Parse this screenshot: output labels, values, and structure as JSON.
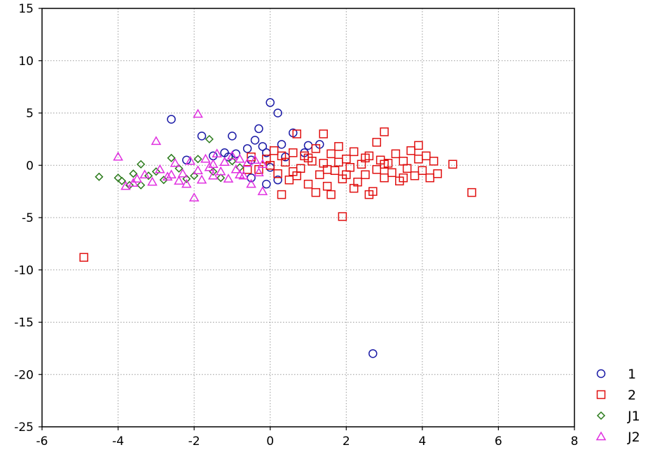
{
  "chart_data": {
    "type": "scatter",
    "title": "",
    "xlabel": "",
    "ylabel": "",
    "xlim": [
      -6,
      8
    ],
    "ylim": [
      -25,
      15
    ],
    "xticks": [
      -6,
      -4,
      -2,
      0,
      2,
      4,
      6,
      8
    ],
    "yticks": [
      -25,
      -20,
      -15,
      -10,
      -5,
      0,
      5,
      10,
      15
    ],
    "grid": true,
    "legend_position": "bottom-right",
    "series": [
      {
        "name": "1",
        "marker": "circle",
        "color": "#1a1aa6",
        "points": [
          [
            -2.6,
            4.4
          ],
          [
            -1.8,
            2.8
          ],
          [
            -1.0,
            2.8
          ],
          [
            -0.3,
            3.5
          ],
          [
            0.0,
            6.0
          ],
          [
            0.2,
            5.0
          ],
          [
            0.6,
            3.1
          ],
          [
            -0.4,
            2.4
          ],
          [
            -0.6,
            1.6
          ],
          [
            -0.9,
            1.1
          ],
          [
            -1.1,
            0.8
          ],
          [
            -1.5,
            0.9
          ],
          [
            -0.2,
            1.8
          ],
          [
            0.3,
            2.0
          ],
          [
            0.9,
            1.2
          ],
          [
            1.3,
            2.0
          ],
          [
            -0.5,
            0.5
          ],
          [
            -0.1,
            1.2
          ],
          [
            0.4,
            0.8
          ],
          [
            0.0,
            -0.2
          ],
          [
            0.2,
            -1.4
          ],
          [
            -0.1,
            -1.8
          ],
          [
            -0.5,
            -1.2
          ],
          [
            1.0,
            1.9
          ],
          [
            -2.2,
            0.5
          ],
          [
            -1.2,
            1.2
          ],
          [
            2.7,
            -18.0
          ]
        ]
      },
      {
        "name": "2",
        "marker": "square",
        "color": "#e01010",
        "points": [
          [
            -4.9,
            -8.8
          ],
          [
            5.3,
            -2.6
          ],
          [
            1.9,
            -4.9
          ],
          [
            3.0,
            3.2
          ],
          [
            0.7,
            3.0
          ],
          [
            1.4,
            3.0
          ],
          [
            2.8,
            2.2
          ],
          [
            3.9,
            1.9
          ],
          [
            4.8,
            0.1
          ],
          [
            4.4,
            -0.8
          ],
          [
            2.6,
            -2.8
          ],
          [
            1.6,
            -2.8
          ],
          [
            0.3,
            -2.8
          ],
          [
            -0.5,
            0.8
          ],
          [
            -0.3,
            -0.4
          ],
          [
            -0.1,
            0.6
          ],
          [
            0.1,
            1.4
          ],
          [
            0.2,
            -0.8
          ],
          [
            0.4,
            0.3
          ],
          [
            0.5,
            -1.4
          ],
          [
            0.6,
            1.2
          ],
          [
            0.8,
            -0.3
          ],
          [
            0.9,
            0.9
          ],
          [
            1.0,
            -1.8
          ],
          [
            1.1,
            0.4
          ],
          [
            1.2,
            1.6
          ],
          [
            1.3,
            -0.9
          ],
          [
            1.4,
            0.2
          ],
          [
            1.5,
            -2.0
          ],
          [
            1.6,
            1.1
          ],
          [
            1.7,
            -0.5
          ],
          [
            1.8,
            1.8
          ],
          [
            1.9,
            -1.3
          ],
          [
            2.0,
            0.6
          ],
          [
            2.1,
            -0.2
          ],
          [
            2.2,
            1.3
          ],
          [
            2.3,
            -1.6
          ],
          [
            2.4,
            0.1
          ],
          [
            2.5,
            -0.9
          ],
          [
            2.6,
            0.9
          ],
          [
            2.7,
            -2.5
          ],
          [
            2.8,
            -0.4
          ],
          [
            2.9,
            0.5
          ],
          [
            3.0,
            -1.2
          ],
          [
            3.1,
            0.2
          ],
          [
            3.2,
            -0.7
          ],
          [
            3.3,
            1.1
          ],
          [
            3.4,
            -1.5
          ],
          [
            3.5,
            0.4
          ],
          [
            3.6,
            -0.3
          ],
          [
            3.7,
            1.4
          ],
          [
            3.8,
            -1.0
          ],
          [
            3.9,
            0.6
          ],
          [
            4.0,
            -0.5
          ],
          [
            4.1,
            0.9
          ],
          [
            4.2,
            -1.2
          ],
          [
            4.3,
            0.4
          ],
          [
            0.0,
            0.0
          ],
          [
            0.3,
            0.9
          ],
          [
            0.6,
            -0.6
          ],
          [
            1.0,
            0.7
          ],
          [
            1.5,
            -0.4
          ],
          [
            2.0,
            -0.9
          ],
          [
            2.5,
            0.7
          ],
          [
            3.0,
            0.1
          ],
          [
            3.5,
            -1.2
          ],
          [
            1.2,
            -2.6
          ],
          [
            2.2,
            -2.2
          ],
          [
            0.7,
            -1.0
          ],
          [
            1.8,
            0.3
          ],
          [
            -0.6,
            -0.4
          ]
        ]
      },
      {
        "name": "J1",
        "marker": "diamond",
        "color": "#2a7a1a",
        "points": [
          [
            -4.5,
            -1.1
          ],
          [
            -4.0,
            -1.2
          ],
          [
            -3.9,
            -1.5
          ],
          [
            -3.7,
            -1.9
          ],
          [
            -3.6,
            -0.8
          ],
          [
            -3.4,
            -1.9
          ],
          [
            -3.4,
            0.1
          ],
          [
            -3.2,
            -1.0
          ],
          [
            -3.0,
            -0.6
          ],
          [
            -2.8,
            -1.4
          ],
          [
            -2.6,
            0.7
          ],
          [
            -2.4,
            -0.3
          ],
          [
            -2.2,
            -1.3
          ],
          [
            -2.0,
            -1.0
          ],
          [
            -1.9,
            0.6
          ],
          [
            -1.6,
            2.5
          ],
          [
            -1.5,
            -0.6
          ],
          [
            -1.3,
            -1.2
          ],
          [
            -1.0,
            0.4
          ],
          [
            -0.8,
            -0.2
          ]
        ]
      },
      {
        "name": "J2",
        "marker": "triangle",
        "color": "#e030e0",
        "points": [
          [
            -1.9,
            4.9
          ],
          [
            -3.0,
            2.3
          ],
          [
            -4.0,
            0.8
          ],
          [
            -2.0,
            -3.1
          ],
          [
            -0.2,
            -2.5
          ],
          [
            -3.8,
            -2.0
          ],
          [
            -3.5,
            -1.3
          ],
          [
            -3.3,
            -0.9
          ],
          [
            -3.1,
            -1.6
          ],
          [
            -2.9,
            -0.4
          ],
          [
            -2.7,
            -1.1
          ],
          [
            -2.5,
            0.2
          ],
          [
            -2.3,
            -0.8
          ],
          [
            -2.2,
            -1.8
          ],
          [
            -2.1,
            0.4
          ],
          [
            -1.9,
            -0.5
          ],
          [
            -1.8,
            -1.4
          ],
          [
            -1.7,
            0.6
          ],
          [
            -1.6,
            -0.2
          ],
          [
            -1.5,
            -1.0
          ],
          [
            -1.4,
            1.1
          ],
          [
            -1.3,
            -0.6
          ],
          [
            -1.2,
            0.3
          ],
          [
            -1.1,
            -1.3
          ],
          [
            -1.0,
            0.9
          ],
          [
            -0.9,
            -0.4
          ],
          [
            -0.8,
            0.6
          ],
          [
            -0.7,
            -1.0
          ],
          [
            -0.6,
            0.2
          ],
          [
            -0.5,
            -1.8
          ],
          [
            -0.4,
            0.5
          ],
          [
            -0.3,
            -0.7
          ],
          [
            -0.2,
            0.1
          ],
          [
            -2.6,
            -0.9
          ],
          [
            -2.4,
            -1.5
          ],
          [
            -3.6,
            -1.7
          ],
          [
            -1.5,
            0.1
          ],
          [
            -0.8,
            -0.9
          ]
        ]
      }
    ]
  }
}
